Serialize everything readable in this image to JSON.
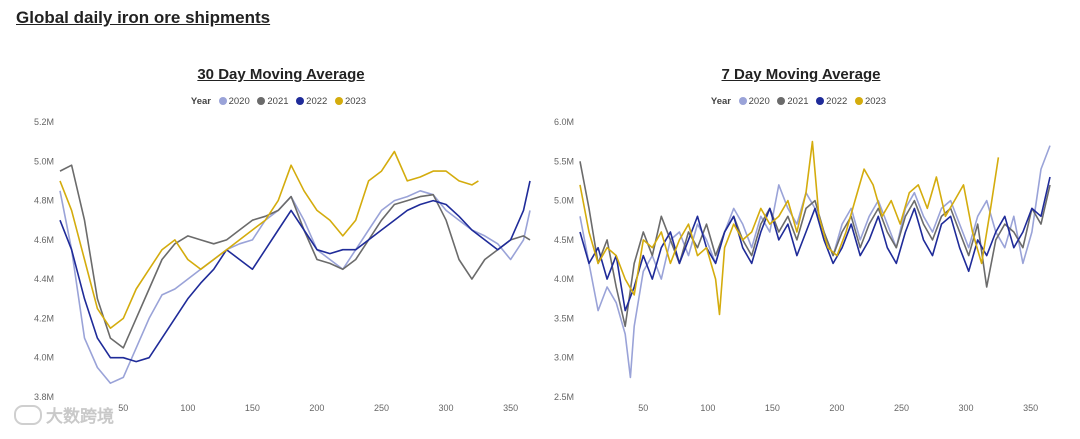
{
  "page": {
    "title": "Global daily iron ore shipments"
  },
  "watermark": {
    "text": "大数跨境"
  },
  "legend_title": "Year",
  "colors": {
    "2020": "#9aa3d8",
    "2021": "#6b6b6b",
    "2022": "#1f2b99",
    "2023": "#d4ac0d"
  },
  "chart_data": [
    {
      "type": "line",
      "title": "30 Day Moving Average",
      "ylim": [
        3.8,
        5.2
      ],
      "xlim": [
        1,
        365
      ],
      "yticks": [
        3.8,
        4.0,
        4.2,
        4.4,
        4.6,
        4.8,
        5.0,
        5.2
      ],
      "ytick_labels": [
        "3.8M",
        "4.0M",
        "4.2M",
        "4.4M",
        "4.6M",
        "4.8M",
        "5.0M",
        "5.2M"
      ],
      "xticks": [
        50,
        100,
        150,
        200,
        250,
        300,
        350
      ],
      "xtick_labels": [
        "50",
        "100",
        "150",
        "200",
        "250",
        "300",
        "350"
      ],
      "legend": "top",
      "grid": false,
      "series": [
        {
          "name": "2020",
          "color": "#9aa3d8",
          "x": [
            1,
            10,
            20,
            30,
            40,
            50,
            60,
            70,
            80,
            90,
            100,
            110,
            120,
            130,
            140,
            150,
            160,
            170,
            180,
            190,
            200,
            210,
            220,
            230,
            240,
            250,
            260,
            270,
            280,
            290,
            300,
            310,
            320,
            330,
            340,
            350,
            360,
            365
          ],
          "y": [
            4.85,
            4.55,
            4.1,
            3.95,
            3.87,
            3.9,
            4.05,
            4.2,
            4.32,
            4.35,
            4.4,
            4.45,
            4.5,
            4.55,
            4.58,
            4.6,
            4.7,
            4.75,
            4.82,
            4.7,
            4.55,
            4.5,
            4.45,
            4.55,
            4.65,
            4.75,
            4.8,
            4.82,
            4.85,
            4.83,
            4.75,
            4.7,
            4.65,
            4.62,
            4.58,
            4.5,
            4.6,
            4.75
          ]
        },
        {
          "name": "2021",
          "color": "#6b6b6b",
          "x": [
            1,
            10,
            20,
            30,
            40,
            50,
            60,
            70,
            80,
            90,
            100,
            110,
            120,
            130,
            140,
            150,
            160,
            170,
            180,
            190,
            200,
            210,
            220,
            230,
            240,
            250,
            260,
            270,
            280,
            290,
            300,
            310,
            320,
            330,
            340,
            350,
            360,
            365
          ],
          "y": [
            4.95,
            4.98,
            4.7,
            4.3,
            4.1,
            4.05,
            4.2,
            4.35,
            4.5,
            4.58,
            4.62,
            4.6,
            4.58,
            4.6,
            4.65,
            4.7,
            4.72,
            4.75,
            4.82,
            4.65,
            4.5,
            4.48,
            4.45,
            4.5,
            4.6,
            4.7,
            4.78,
            4.8,
            4.82,
            4.83,
            4.7,
            4.5,
            4.4,
            4.5,
            4.55,
            4.6,
            4.62,
            4.6
          ]
        },
        {
          "name": "2022",
          "color": "#1f2b99",
          "x": [
            1,
            10,
            20,
            30,
            40,
            50,
            60,
            70,
            80,
            90,
            100,
            110,
            120,
            130,
            140,
            150,
            160,
            170,
            180,
            190,
            200,
            210,
            220,
            230,
            240,
            250,
            260,
            270,
            280,
            290,
            300,
            310,
            320,
            330,
            340,
            350,
            360,
            365
          ],
          "y": [
            4.7,
            4.55,
            4.3,
            4.1,
            4.0,
            4.0,
            3.98,
            4.0,
            4.1,
            4.2,
            4.3,
            4.38,
            4.45,
            4.55,
            4.5,
            4.45,
            4.55,
            4.65,
            4.75,
            4.65,
            4.55,
            4.53,
            4.55,
            4.55,
            4.6,
            4.65,
            4.7,
            4.75,
            4.78,
            4.8,
            4.78,
            4.72,
            4.65,
            4.6,
            4.55,
            4.6,
            4.75,
            4.9
          ]
        },
        {
          "name": "2023",
          "color": "#d4ac0d",
          "x": [
            1,
            10,
            20,
            30,
            40,
            50,
            60,
            70,
            80,
            90,
            100,
            110,
            120,
            130,
            140,
            150,
            160,
            170,
            180,
            190,
            200,
            210,
            220,
            230,
            240,
            250,
            260,
            270,
            280,
            290,
            300,
            310,
            320,
            325
          ],
          "y": [
            4.9,
            4.75,
            4.5,
            4.25,
            4.15,
            4.2,
            4.35,
            4.45,
            4.55,
            4.6,
            4.5,
            4.45,
            4.5,
            4.55,
            4.6,
            4.65,
            4.7,
            4.8,
            4.98,
            4.85,
            4.75,
            4.7,
            4.62,
            4.7,
            4.9,
            4.95,
            5.05,
            4.9,
            4.92,
            4.95,
            4.95,
            4.9,
            4.88,
            4.9
          ]
        }
      ]
    },
    {
      "type": "line",
      "title": "7 Day Moving Average",
      "ylim": [
        2.5,
        6.0
      ],
      "xlim": [
        1,
        365
      ],
      "yticks": [
        2.5,
        3.0,
        3.5,
        4.0,
        4.5,
        5.0,
        5.5,
        6.0
      ],
      "ytick_labels": [
        "2.5M",
        "3.0M",
        "3.5M",
        "4.0M",
        "4.5M",
        "5.0M",
        "5.5M",
        "6.0M"
      ],
      "xticks": [
        50,
        100,
        150,
        200,
        250,
        300,
        350
      ],
      "xtick_labels": [
        "50",
        "100",
        "150",
        "200",
        "250",
        "300",
        "350"
      ],
      "legend": "top",
      "grid": false,
      "series": [
        {
          "name": "2020",
          "color": "#9aa3d8",
          "x": [
            1,
            8,
            15,
            22,
            29,
            36,
            40,
            43,
            50,
            57,
            64,
            71,
            78,
            85,
            92,
            99,
            106,
            113,
            120,
            127,
            134,
            141,
            148,
            155,
            162,
            169,
            176,
            183,
            190,
            197,
            204,
            211,
            218,
            225,
            232,
            239,
            246,
            253,
            260,
            267,
            274,
            281,
            288,
            295,
            302,
            309,
            316,
            323,
            330,
            337,
            344,
            351,
            358,
            365
          ],
          "y": [
            4.8,
            4.2,
            3.6,
            3.9,
            3.7,
            3.3,
            2.75,
            3.4,
            4.1,
            4.3,
            4.0,
            4.5,
            4.6,
            4.3,
            4.7,
            4.5,
            4.2,
            4.6,
            4.9,
            4.7,
            4.4,
            4.8,
            4.6,
            5.2,
            4.9,
            4.7,
            5.1,
            4.9,
            4.6,
            4.3,
            4.7,
            4.9,
            4.5,
            4.8,
            5.0,
            4.7,
            4.4,
            4.9,
            5.1,
            4.8,
            4.6,
            4.9,
            5.0,
            4.7,
            4.4,
            4.8,
            5.0,
            4.6,
            4.4,
            4.8,
            4.2,
            4.6,
            5.4,
            5.7
          ]
        },
        {
          "name": "2021",
          "color": "#6b6b6b",
          "x": [
            1,
            8,
            15,
            22,
            29,
            36,
            43,
            50,
            57,
            64,
            71,
            78,
            85,
            92,
            99,
            106,
            113,
            120,
            127,
            134,
            141,
            148,
            155,
            162,
            169,
            176,
            183,
            190,
            197,
            204,
            211,
            218,
            225,
            232,
            239,
            246,
            253,
            260,
            267,
            274,
            281,
            288,
            295,
            302,
            309,
            316,
            323,
            330,
            337,
            344,
            351,
            358,
            365
          ],
          "y": [
            5.5,
            4.9,
            4.2,
            4.5,
            3.9,
            3.4,
            4.2,
            4.6,
            4.3,
            4.8,
            4.5,
            4.2,
            4.6,
            4.4,
            4.7,
            4.3,
            4.6,
            4.8,
            4.5,
            4.3,
            4.7,
            4.9,
            4.6,
            4.8,
            4.5,
            4.9,
            5.0,
            4.6,
            4.3,
            4.6,
            4.8,
            4.4,
            4.7,
            4.9,
            4.6,
            4.4,
            4.8,
            5.0,
            4.7,
            4.5,
            4.8,
            4.9,
            4.6,
            4.3,
            4.7,
            3.9,
            4.5,
            4.7,
            4.6,
            4.4,
            4.9,
            4.7,
            5.2
          ]
        },
        {
          "name": "2022",
          "color": "#1f2b99",
          "x": [
            1,
            8,
            15,
            22,
            29,
            36,
            43,
            50,
            57,
            64,
            71,
            78,
            85,
            92,
            99,
            106,
            113,
            120,
            127,
            134,
            141,
            148,
            155,
            162,
            169,
            176,
            183,
            190,
            197,
            204,
            211,
            218,
            225,
            232,
            239,
            246,
            253,
            260,
            267,
            274,
            281,
            288,
            295,
            302,
            309,
            316,
            323,
            330,
            337,
            344,
            351,
            358,
            365
          ],
          "y": [
            4.6,
            4.2,
            4.4,
            4.0,
            4.3,
            3.6,
            3.9,
            4.3,
            4.0,
            4.4,
            4.6,
            4.2,
            4.5,
            4.8,
            4.4,
            4.2,
            4.6,
            4.8,
            4.4,
            4.2,
            4.6,
            4.9,
            4.5,
            4.7,
            4.3,
            4.6,
            4.9,
            4.5,
            4.2,
            4.4,
            4.7,
            4.3,
            4.5,
            4.8,
            4.4,
            4.2,
            4.6,
            4.9,
            4.5,
            4.3,
            4.7,
            4.8,
            4.4,
            4.1,
            4.5,
            4.3,
            4.6,
            4.8,
            4.4,
            4.6,
            4.9,
            4.8,
            5.3
          ]
        },
        {
          "name": "2023",
          "color": "#d4ac0d",
          "x": [
            1,
            8,
            15,
            22,
            29,
            36,
            43,
            50,
            57,
            64,
            71,
            78,
            85,
            92,
            99,
            106,
            109,
            113,
            120,
            127,
            134,
            141,
            148,
            155,
            162,
            169,
            176,
            181,
            186,
            193,
            200,
            207,
            214,
            221,
            228,
            235,
            242,
            249,
            256,
            263,
            270,
            277,
            284,
            291,
            298,
            305,
            312,
            319,
            325
          ],
          "y": [
            5.2,
            4.6,
            4.2,
            4.4,
            4.3,
            4.0,
            3.8,
            4.5,
            4.4,
            4.6,
            4.2,
            4.5,
            4.7,
            4.3,
            4.4,
            4.0,
            3.55,
            4.4,
            4.7,
            4.5,
            4.6,
            4.9,
            4.7,
            4.8,
            5.0,
            4.6,
            5.1,
            5.75,
            4.8,
            4.4,
            4.3,
            4.6,
            5.0,
            5.4,
            5.2,
            4.8,
            5.0,
            4.7,
            5.1,
            5.2,
            4.9,
            5.3,
            4.8,
            5.0,
            5.2,
            4.6,
            4.2,
            4.9,
            5.55
          ]
        }
      ]
    }
  ]
}
